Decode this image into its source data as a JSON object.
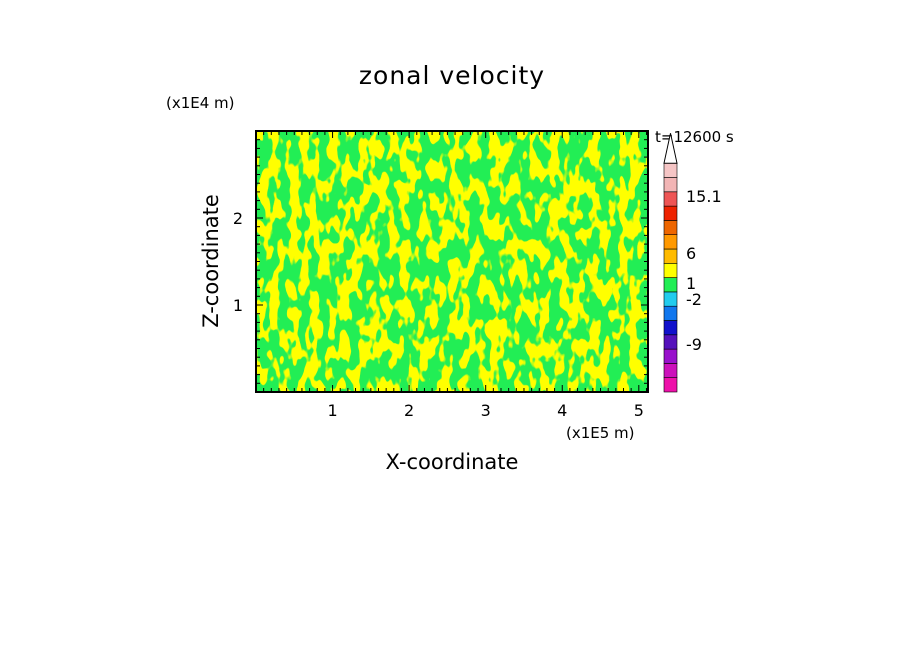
{
  "chart_data": {
    "type": "heatmap",
    "title": "zonal velocity",
    "xlabel": "X-coordinate",
    "ylabel": "Z-coordinate",
    "x_unit": "(x1E5 m)",
    "y_unit": "(x1E4 m)",
    "time_label": "t=12600 s",
    "xlim": [
      0,
      5.12
    ],
    "ylim": [
      0,
      3
    ],
    "x_ticks": [
      1,
      2,
      3,
      4,
      5
    ],
    "y_ticks": [
      1,
      2
    ],
    "x_tick_labels": [
      "1",
      "2",
      "3",
      "4",
      "5"
    ],
    "y_tick_labels": [
      "1",
      "2"
    ],
    "field_colors": {
      "low": "#22ee55",
      "high": "#ffff00"
    },
    "colorbar": {
      "labels": [
        "15.1",
        "6",
        "1",
        "-2",
        "-9"
      ],
      "label_values": [
        15.1,
        6,
        1,
        -2,
        -9
      ],
      "bands": [
        {
          "color": "#ee11aa"
        },
        {
          "color": "#cc11bb"
        },
        {
          "color": "#9911cc"
        },
        {
          "color": "#5511bb"
        },
        {
          "color": "#1111cc"
        },
        {
          "color": "#1177ee"
        },
        {
          "color": "#22ccee"
        },
        {
          "color": "#22ee55"
        },
        {
          "color": "#ffff00"
        },
        {
          "color": "#ffbb00"
        },
        {
          "color": "#ff9900"
        },
        {
          "color": "#ee6600"
        },
        {
          "color": "#ee2200"
        },
        {
          "color": "#ee5555"
        },
        {
          "color": "#f2b5b5"
        },
        {
          "color": "#f5c5c5"
        }
      ],
      "extend_max": true
    }
  }
}
